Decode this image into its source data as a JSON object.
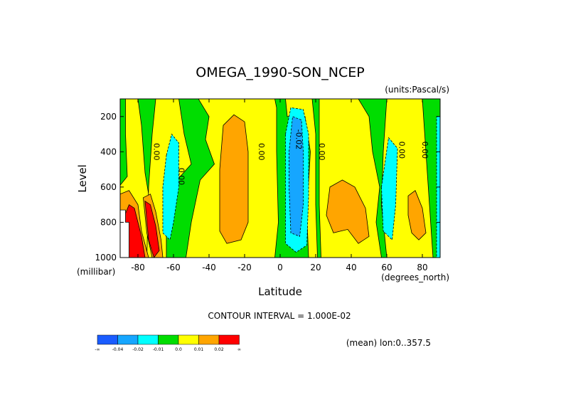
{
  "chart_data": {
    "type": "heatmap",
    "title": "OMEGA_1990-SON_NCEP",
    "units": "(units:Pascal/s)",
    "ylabel": "Level",
    "yunits": "(millibar)",
    "xlabel": "Latitude",
    "xunits": "(degrees_north)",
    "xlim": [
      -90,
      90
    ],
    "ylim": [
      1000,
      100
    ],
    "x_ticks": [
      -80,
      -60,
      -40,
      -20,
      0,
      20,
      40,
      60,
      80
    ],
    "y_ticks": [
      200,
      400,
      600,
      800,
      1000
    ],
    "contour_interval": "CONTOUR INTERVAL = 1.000E-02",
    "mean_note": "(mean) lon:0..357.5",
    "contour_labels": [
      "0.00",
      "0.00",
      "0.00",
      "-0.02",
      "0.00",
      "0.00",
      "0.00"
    ],
    "legend": {
      "colors": [
        "#1a5cff",
        "#16a6ff",
        "#00ffff",
        "#00dd00",
        "#ffff00",
        "#ffa500",
        "#ff0000"
      ],
      "labels": [
        "-∞",
        "-0.04",
        "-0.02",
        "-0.01",
        "0.0",
        "0.01",
        "0.02",
        "∞"
      ]
    },
    "grid": false
  },
  "fill_colors": {
    "green": "#00dd00",
    "yellow": "#ffff00",
    "orange": "#ffa500",
    "cyan": "#00ffff",
    "blue": "#16a6ff",
    "darkblue": "#1a5cff",
    "red": "#ff0000"
  }
}
